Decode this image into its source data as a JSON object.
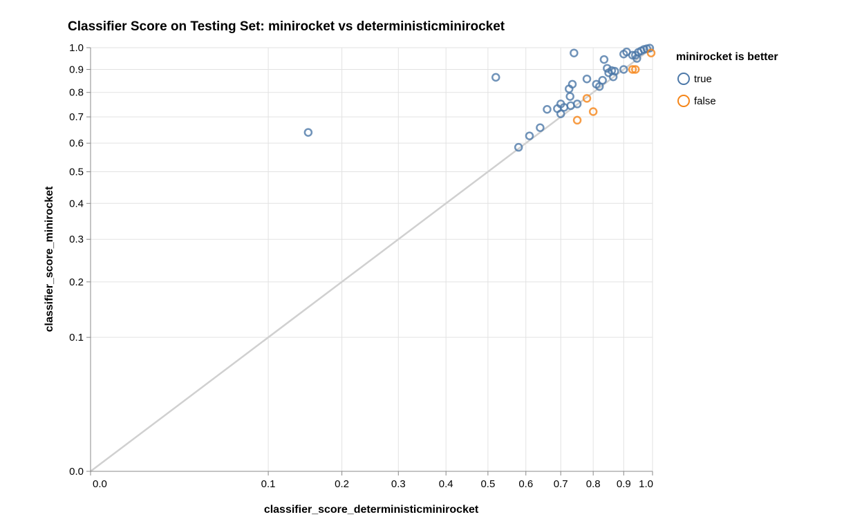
{
  "chart_data": {
    "type": "scatter",
    "title": "Classifier Score on Testing Set: minirocket vs deterministicminirocket",
    "xlabel": "classifier_score_deterministicminirocket",
    "ylabel": "classifier_score_minirocket",
    "xlim": [
      0,
      1
    ],
    "ylim": [
      0,
      1
    ],
    "x_scale": "sqrt",
    "y_scale": "sqrt",
    "grid": true,
    "x_ticks": [
      "0.0",
      "0.1",
      "0.2",
      "0.3",
      "0.4",
      "0.5",
      "0.6",
      "0.7",
      "0.8",
      "0.9",
      "1.0"
    ],
    "y_ticks": [
      "0.0",
      "0.1",
      "0.2",
      "0.3",
      "0.4",
      "0.5",
      "0.6",
      "0.7",
      "0.8",
      "0.9",
      "1.0"
    ],
    "reference_line": {
      "from": [
        0,
        0
      ],
      "to": [
        1,
        1
      ],
      "color": "#d0d0d0"
    },
    "legend": {
      "title": "minirocket is better",
      "position": "right",
      "items": [
        {
          "label": "true",
          "color": "#4c78a8"
        },
        {
          "label": "false",
          "color": "#f58518"
        }
      ]
    },
    "series": [
      {
        "name": "true",
        "color": "#4c78a8",
        "points": [
          [
            0.15,
            0.64
          ],
          [
            0.52,
            0.865
          ],
          [
            0.58,
            0.585
          ],
          [
            0.61,
            0.627
          ],
          [
            0.64,
            0.658
          ],
          [
            0.66,
            0.73
          ],
          [
            0.69,
            0.733
          ],
          [
            0.7,
            0.752
          ],
          [
            0.7,
            0.712
          ],
          [
            0.71,
            0.738
          ],
          [
            0.725,
            0.815
          ],
          [
            0.728,
            0.783
          ],
          [
            0.73,
            0.745
          ],
          [
            0.735,
            0.835
          ],
          [
            0.74,
            0.975
          ],
          [
            0.75,
            0.752
          ],
          [
            0.78,
            0.858
          ],
          [
            0.81,
            0.835
          ],
          [
            0.82,
            0.825
          ],
          [
            0.83,
            0.852
          ],
          [
            0.835,
            0.945
          ],
          [
            0.845,
            0.905
          ],
          [
            0.85,
            0.885
          ],
          [
            0.86,
            0.895
          ],
          [
            0.865,
            0.867
          ],
          [
            0.87,
            0.892
          ],
          [
            0.9,
            0.9
          ],
          [
            0.9,
            0.97
          ],
          [
            0.91,
            0.98
          ],
          [
            0.93,
            0.965
          ],
          [
            0.94,
            0.965
          ],
          [
            0.945,
            0.95
          ],
          [
            0.95,
            0.978
          ],
          [
            0.96,
            0.985
          ],
          [
            0.97,
            0.992
          ],
          [
            0.98,
            0.995
          ],
          [
            0.99,
            0.998
          ]
        ]
      },
      {
        "name": "false",
        "color": "#f58518",
        "points": [
          [
            0.75,
            0.687
          ],
          [
            0.78,
            0.775
          ],
          [
            0.8,
            0.721
          ],
          [
            0.93,
            0.9
          ],
          [
            0.94,
            0.9
          ],
          [
            0.995,
            0.975
          ]
        ]
      }
    ]
  }
}
